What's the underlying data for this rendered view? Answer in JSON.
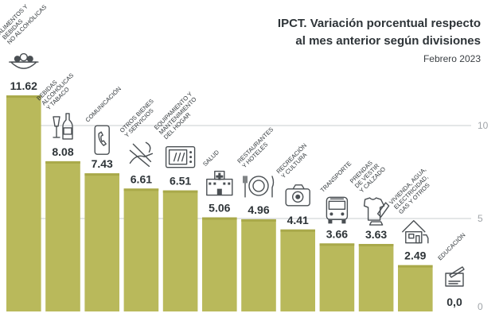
{
  "header": {
    "title_line1": "IPCT. Variación porcentual respecto",
    "title_line2": "al mes anterior según divisiones",
    "date": "Febrero 2023"
  },
  "colors": {
    "bar": "#b9b95b",
    "bar_top": "#a9a94a",
    "text": "#2e3438",
    "icon": "#4a4f53",
    "grid": "#c9cccf"
  },
  "chart_data": {
    "type": "bar",
    "title": "IPCT. Variación porcentual respecto al mes anterior según divisiones",
    "subtitle": "Febrero 2023",
    "xlabel": "",
    "ylabel": "",
    "ylim": [
      0,
      10
    ],
    "yticks": [
      0,
      5,
      10
    ],
    "grid": true,
    "categories": [
      [
        "ALIMENTOS Y",
        "BEBIDAS",
        "NO ALCOHÓLICAS"
      ],
      [
        "BEBIDAS",
        "ALCOHÓLICAS",
        "Y TABACO"
      ],
      [
        "COMUNICACIÓN"
      ],
      [
        "OTROS BIENES",
        "Y SERVICIOS"
      ],
      [
        "EQUIPAMIENTO Y",
        "MANTENIMIENTO",
        "DEL HOGAR"
      ],
      [
        "SALUD"
      ],
      [
        "RESTAURANTES",
        "Y HOTELES"
      ],
      [
        "RECREACIÓN",
        "Y CULTURA"
      ],
      [
        "TRANSPORTE"
      ],
      [
        "PRENDAS",
        "DE VESTIR",
        "Y CALZADO"
      ],
      [
        "VIVIENDA, AGUA,",
        "ELECTRICIDAD,",
        "GAS Y OTROS"
      ],
      [
        "EDUCACIÓN"
      ]
    ],
    "values": [
      11.62,
      8.08,
      7.43,
      6.61,
      6.51,
      5.06,
      4.96,
      4.41,
      3.66,
      3.63,
      2.49,
      0.0
    ],
    "value_labels": [
      "11.62",
      "8.08",
      "7.43",
      "6.61",
      "6.51",
      "5.06",
      "4.96",
      "4.41",
      "3.66",
      "3.63",
      "2.49",
      "0,0"
    ],
    "icons": [
      "food-bowl-icon",
      "bottles-icon",
      "phone-icon",
      "services-icon",
      "microwave-icon",
      "hospital-icon",
      "restaurant-icon",
      "camera-icon",
      "bus-icon",
      "clothes-icon",
      "house-icon",
      "education-icon"
    ]
  }
}
